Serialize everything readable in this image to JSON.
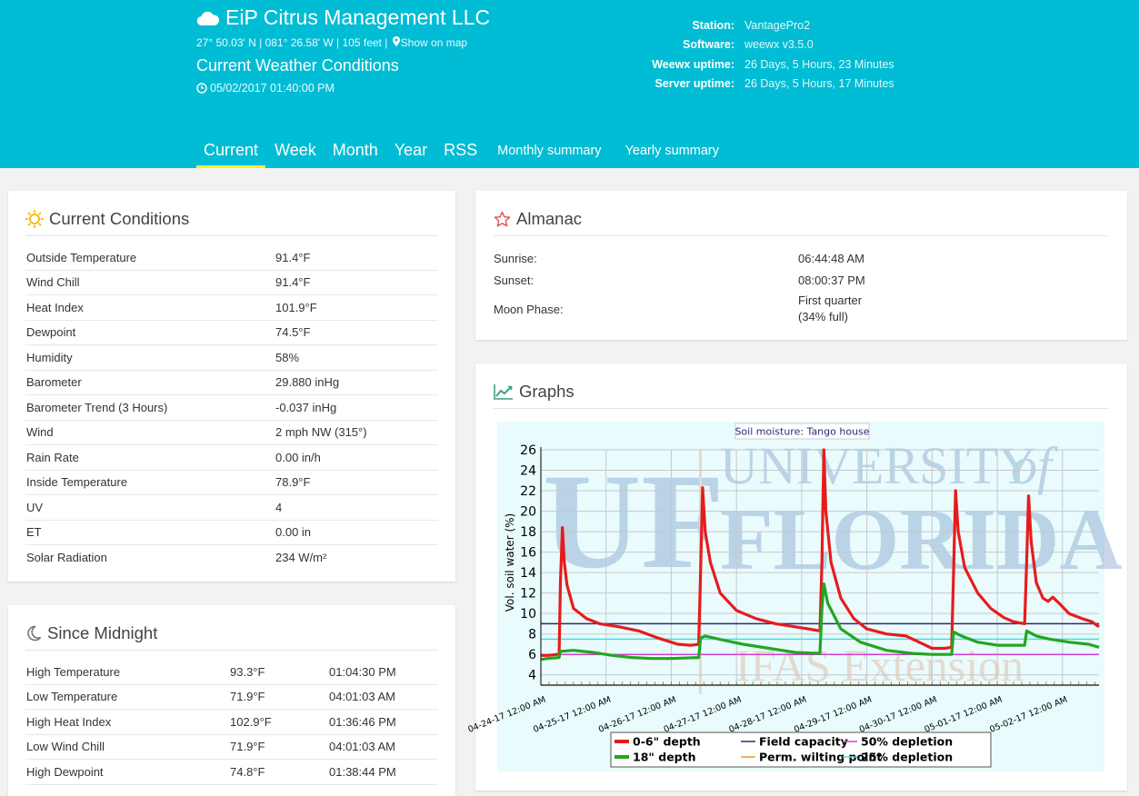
{
  "header": {
    "site_title": "EiP Citrus Management LLC",
    "location": "27° 50.03' N | 081° 26.58' W | 105 feet | ",
    "show_on_map": "Show on map",
    "page_heading": "Current Weather Conditions",
    "timestamp": "05/02/2017 01:40:00 PM",
    "station_info": [
      {
        "key": "Station:",
        "value": "VantagePro2"
      },
      {
        "key": "Software:",
        "value": "weewx v3.5.0"
      },
      {
        "key": "Weewx uptime:",
        "value": "26 Days, 5 Hours, 23 Minutes"
      },
      {
        "key": "Server uptime:",
        "value": "26 Days, 5 Hours, 17 Minutes"
      }
    ]
  },
  "nav": {
    "items": [
      {
        "label": "Current"
      },
      {
        "label": "Week"
      },
      {
        "label": "Month"
      },
      {
        "label": "Year"
      },
      {
        "label": "RSS"
      },
      {
        "label": "Monthly summary"
      },
      {
        "label": "Yearly summary"
      }
    ]
  },
  "current_conditions": {
    "title": "Current Conditions",
    "rows": [
      {
        "label": "Outside Temperature",
        "value": "91.4°F"
      },
      {
        "label": "Wind Chill",
        "value": "91.4°F"
      },
      {
        "label": "Heat Index",
        "value": "101.9°F"
      },
      {
        "label": "Dewpoint",
        "value": "74.5°F"
      },
      {
        "label": "Humidity",
        "value": "58%"
      },
      {
        "label": "Barometer",
        "value": "29.880 inHg"
      },
      {
        "label": "Barometer Trend (3 Hours)",
        "value": "-0.037 inHg"
      },
      {
        "label": "Wind",
        "value": "2 mph NW (315°)"
      },
      {
        "label": "Rain Rate",
        "value": "0.00 in/h"
      },
      {
        "label": "Inside Temperature",
        "value": "78.9°F"
      },
      {
        "label": "UV",
        "value": "4"
      },
      {
        "label": "ET",
        "value": "0.00 in"
      },
      {
        "label": "Solar Radiation",
        "value": "234 W/m²"
      }
    ]
  },
  "since_midnight": {
    "title": "Since Midnight",
    "rows": [
      {
        "label": "High Temperature",
        "value": "93.3°F",
        "time": "01:04:30 PM"
      },
      {
        "label": "Low Temperature",
        "value": "71.9°F",
        "time": "04:01:03 AM"
      },
      {
        "label": "High Heat Index",
        "value": "102.9°F",
        "time": "01:36:46 PM"
      },
      {
        "label": "Low Wind Chill",
        "value": "71.9°F",
        "time": "04:01:03 AM"
      },
      {
        "label": "High Dewpoint",
        "value": "74.8°F",
        "time": "01:38:44 PM"
      }
    ]
  },
  "almanac": {
    "title": "Almanac",
    "sunrise_label": "Sunrise:",
    "sunrise": "06:44:48 AM",
    "sunset_label": "Sunset:",
    "sunset": "08:00:37 PM",
    "moon_label": "Moon Phase:",
    "moon_phase": "First quarter",
    "moon_full": "(34% full)"
  },
  "graphs": {
    "title": "Graphs",
    "watermark_line1": "UNIVERSITY",
    "watermark_of": "of",
    "watermark_line2": "FLORIDA",
    "watermark_line3": "IFAS Extension",
    "watermark_uf": "UF"
  },
  "chart_data": {
    "type": "line",
    "title": "Soil moisture: Tango house",
    "ylabel": "Vol. soil water (%)",
    "xlabel": "",
    "ylim": [
      3,
      26
    ],
    "yticks": [
      4,
      6,
      8,
      10,
      12,
      14,
      16,
      18,
      20,
      22,
      24,
      26
    ],
    "x_ticks": [
      "04-24-17 12:00 AM",
      "04-25-17 12:00 AM",
      "04-26-17 12:00 AM",
      "04-27-17 12:00 AM",
      "04-28-17 12:00 AM",
      "04-29-17 12:00 AM",
      "04-30-17 12:00 AM",
      "05-01-17 12:00 AM",
      "05-02-17 12:00 AM"
    ],
    "xlim": [
      0,
      8.56
    ],
    "grid": true,
    "legend_position": "bottom",
    "reference_lines": [
      {
        "name": "Field capacity",
        "value": 9.0,
        "color": "#2a2a7a"
      },
      {
        "name": "Perm. wilting point",
        "value": 3.0,
        "color": "#e6a020"
      },
      {
        "name": "50% depletion",
        "value": 6.0,
        "color": "#d53dd3"
      },
      {
        "name": "25% depletion",
        "value": 7.5,
        "color": "#44dede"
      }
    ],
    "series": [
      {
        "name": "0-6\" depth",
        "color": "#e61c1c",
        "points": [
          [
            0,
            5.9
          ],
          [
            0.1,
            5.9
          ],
          [
            0.25,
            6.0
          ],
          [
            0.28,
            6.0
          ],
          [
            0.3,
            13.0
          ],
          [
            0.33,
            18.4
          ],
          [
            0.36,
            15.0
          ],
          [
            0.4,
            12.8
          ],
          [
            0.5,
            10.5
          ],
          [
            0.7,
            9.5
          ],
          [
            0.9,
            9.0
          ],
          [
            1.2,
            8.7
          ],
          [
            1.5,
            8.3
          ],
          [
            1.8,
            7.6
          ],
          [
            2.1,
            7.0
          ],
          [
            2.3,
            6.9
          ],
          [
            2.42,
            7.0
          ],
          [
            2.45,
            14.0
          ],
          [
            2.48,
            22.3
          ],
          [
            2.52,
            18.0
          ],
          [
            2.6,
            15.0
          ],
          [
            2.75,
            12.0
          ],
          [
            3.0,
            10.3
          ],
          [
            3.3,
            9.5
          ],
          [
            3.6,
            9.0
          ],
          [
            3.9,
            8.7
          ],
          [
            4.1,
            8.5
          ],
          [
            4.28,
            8.3
          ],
          [
            4.31,
            15.0
          ],
          [
            4.34,
            26.0
          ],
          [
            4.37,
            20.0
          ],
          [
            4.45,
            15.0
          ],
          [
            4.6,
            11.5
          ],
          [
            4.8,
            9.5
          ],
          [
            5.0,
            8.5
          ],
          [
            5.3,
            8.0
          ],
          [
            5.6,
            7.8
          ],
          [
            5.8,
            7.2
          ],
          [
            6.0,
            6.6
          ],
          [
            6.2,
            6.6
          ],
          [
            6.3,
            6.7
          ],
          [
            6.33,
            14.0
          ],
          [
            6.36,
            22.0
          ],
          [
            6.4,
            18.0
          ],
          [
            6.5,
            14.5
          ],
          [
            6.7,
            12.0
          ],
          [
            6.9,
            10.5
          ],
          [
            7.1,
            9.6
          ],
          [
            7.25,
            9.2
          ],
          [
            7.42,
            9.0
          ],
          [
            7.45,
            15.0
          ],
          [
            7.48,
            21.5
          ],
          [
            7.52,
            17.0
          ],
          [
            7.6,
            13.0
          ],
          [
            7.7,
            11.5
          ],
          [
            7.78,
            11.2
          ],
          [
            7.85,
            11.6
          ],
          [
            7.95,
            11.0
          ],
          [
            8.1,
            10.0
          ],
          [
            8.3,
            9.5
          ],
          [
            8.45,
            9.2
          ],
          [
            8.56,
            8.7
          ]
        ]
      },
      {
        "name": "18\" depth",
        "color": "#22a622",
        "points": [
          [
            0,
            5.5
          ],
          [
            0.1,
            5.6
          ],
          [
            0.28,
            5.7
          ],
          [
            0.3,
            6.3
          ],
          [
            0.5,
            6.4
          ],
          [
            0.8,
            6.2
          ],
          [
            1.1,
            5.9
          ],
          [
            1.4,
            5.7
          ],
          [
            1.7,
            5.6
          ],
          [
            2.0,
            5.6
          ],
          [
            2.42,
            5.7
          ],
          [
            2.45,
            7.6
          ],
          [
            2.52,
            7.8
          ],
          [
            2.8,
            7.4
          ],
          [
            3.1,
            7.0
          ],
          [
            3.5,
            6.6
          ],
          [
            3.9,
            6.2
          ],
          [
            4.28,
            6.1
          ],
          [
            4.31,
            10.5
          ],
          [
            4.34,
            12.9
          ],
          [
            4.4,
            11.0
          ],
          [
            4.6,
            8.5
          ],
          [
            4.9,
            7.2
          ],
          [
            5.3,
            6.4
          ],
          [
            5.7,
            6.1
          ],
          [
            6.0,
            6.0
          ],
          [
            6.3,
            6.0
          ],
          [
            6.33,
            8.2
          ],
          [
            6.45,
            7.8
          ],
          [
            6.7,
            7.2
          ],
          [
            7.0,
            6.9
          ],
          [
            7.42,
            6.9
          ],
          [
            7.45,
            8.3
          ],
          [
            7.6,
            7.8
          ],
          [
            7.8,
            7.5
          ],
          [
            8.1,
            7.2
          ],
          [
            8.4,
            7.0
          ],
          [
            8.56,
            6.7
          ]
        ]
      }
    ]
  }
}
